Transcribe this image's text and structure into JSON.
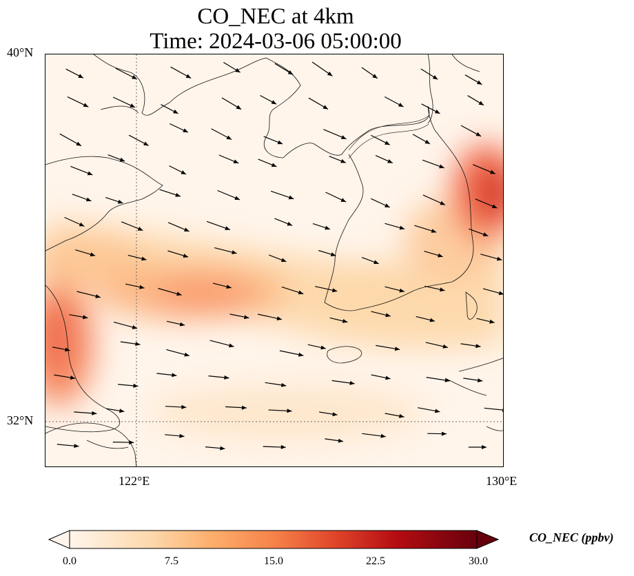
{
  "title": {
    "line1": "CO_NEC at 4km",
    "line2": "Time: 2024-03-06 05:00:00"
  },
  "map": {
    "lat_range": [
      31,
      40
    ],
    "lon_range": [
      120,
      130
    ],
    "gridlines": {
      "lat": 32,
      "lon": 122,
      "style": "dotted"
    },
    "lat_ticks": [
      {
        "value": 40,
        "label": "40°N"
      },
      {
        "value": 32,
        "label": "32°N"
      }
    ],
    "lon_ticks": [
      {
        "value": 122,
        "label": "122°E"
      },
      {
        "value": 130,
        "label": "130°E"
      }
    ],
    "variable": "CO_NEC",
    "overlay": "wind vectors"
  },
  "colorbar": {
    "label": "CO_NEC (ppbv)",
    "range": [
      0,
      30
    ],
    "extend": "both",
    "colormap": [
      "#fff5eb",
      "#fdd49e",
      "#fdae6b",
      "#f16913",
      "#d94801",
      "#a50f15",
      "#67000d"
    ],
    "ticks": [
      "0.0",
      "7.5",
      "15.0",
      "22.5",
      "30.0"
    ]
  }
}
